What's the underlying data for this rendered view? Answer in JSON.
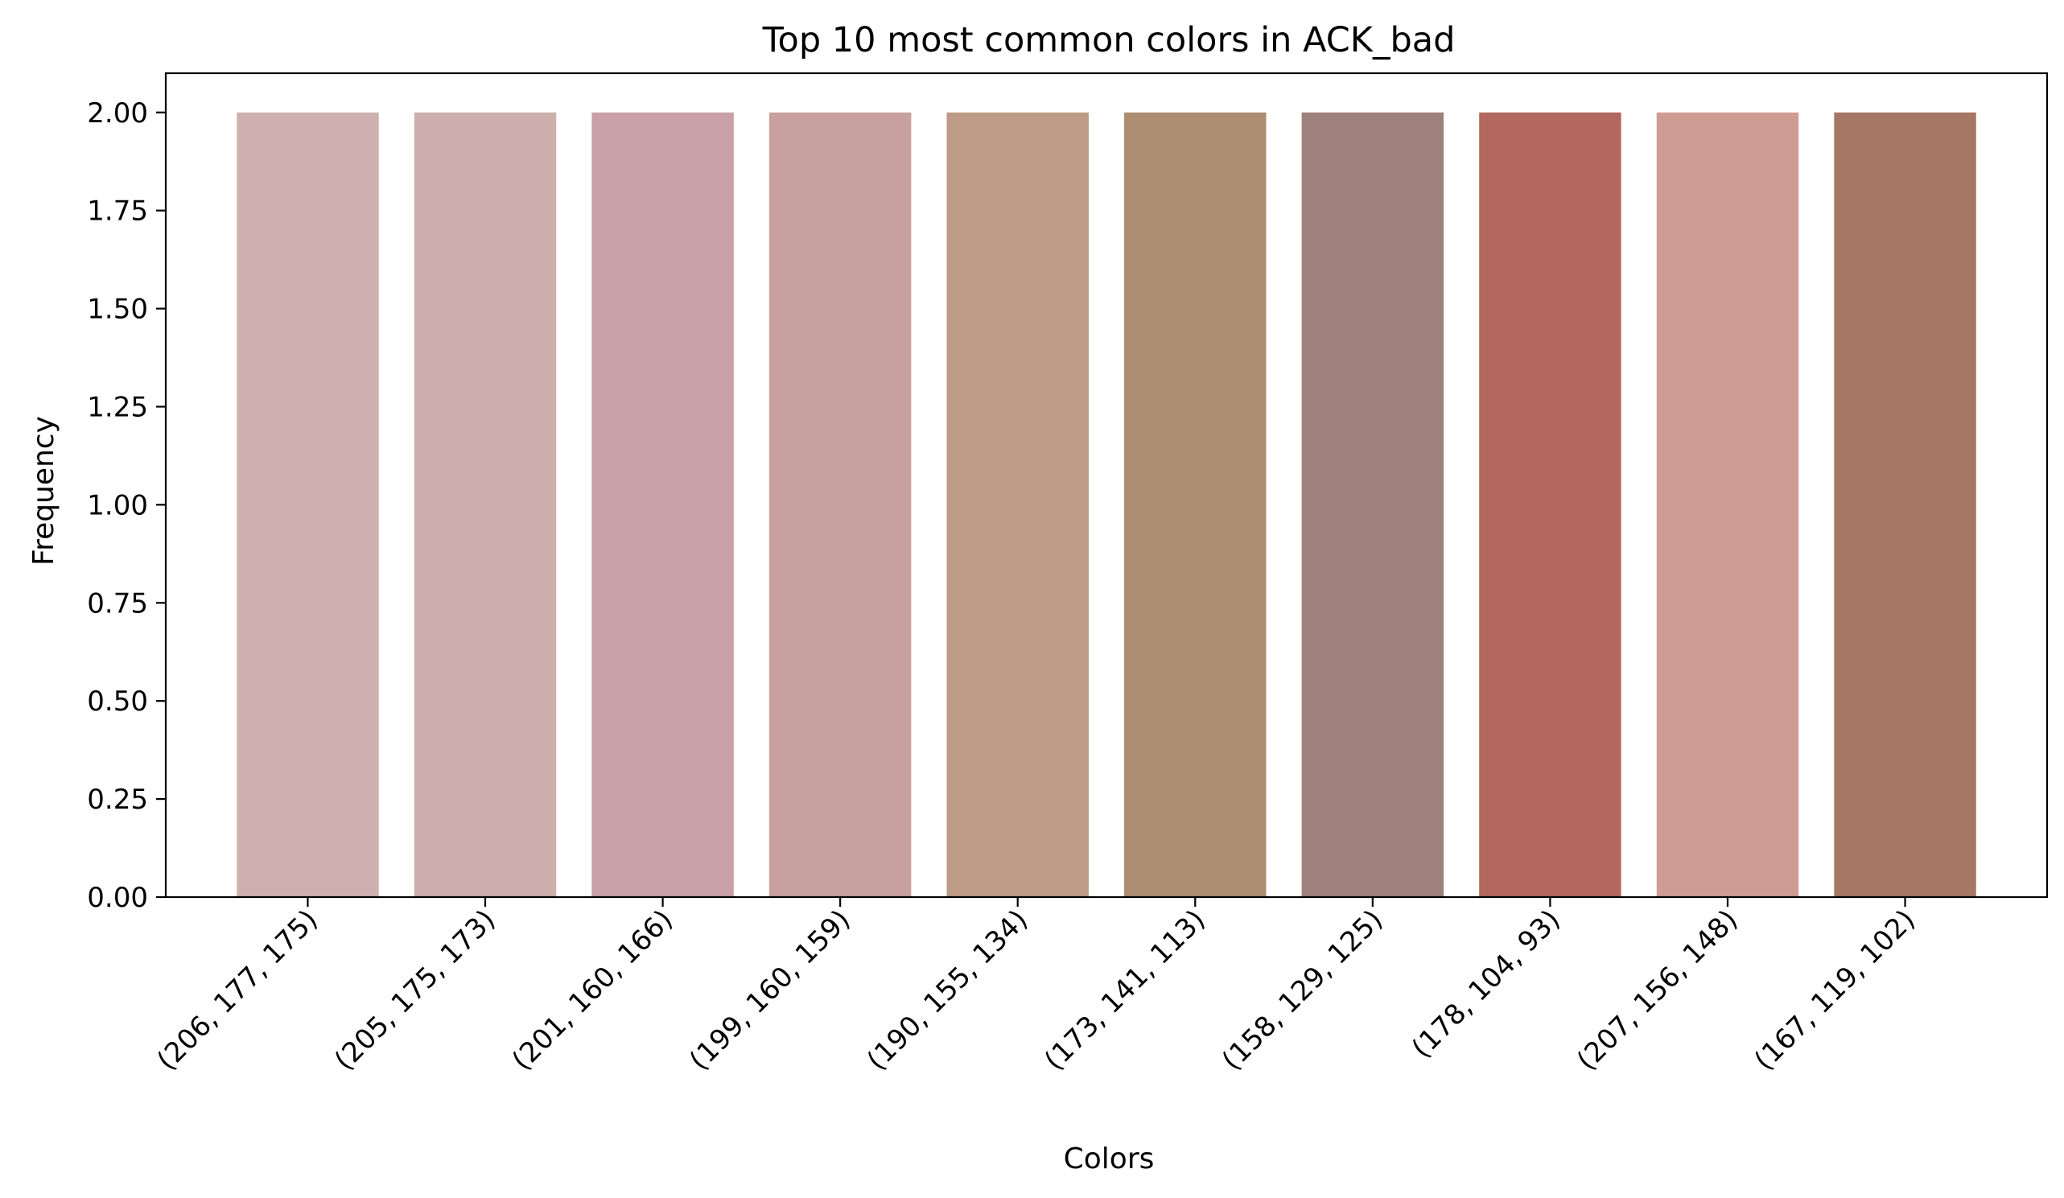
{
  "chart_data": {
    "type": "bar",
    "title": "Top 10 most common colors in ACK_bad",
    "xlabel": "Colors",
    "ylabel": "Frequency",
    "ylim": [
      0,
      2.1
    ],
    "yticks": [
      "0.00",
      "0.25",
      "0.50",
      "0.75",
      "1.00",
      "1.25",
      "1.50",
      "1.75",
      "2.00"
    ],
    "categories": [
      "(206, 177, 175)",
      "(205, 175, 173)",
      "(201, 160, 166)",
      "(199, 160, 159)",
      "(190, 155, 134)",
      "(173, 141, 113)",
      "(158, 129, 125)",
      "(178, 104, 93)",
      "(207, 156, 148)",
      "(167, 119, 102)"
    ],
    "values": [
      2,
      2,
      2,
      2,
      2,
      2,
      2,
      2,
      2,
      2
    ],
    "bar_colors": [
      "#ceb1af",
      "#cdafad",
      "#c9a0a6",
      "#c7a09f",
      "#be9b86",
      "#ad8d71",
      "#9e817d",
      "#b2685d",
      "#cf9c94",
      "#a77766"
    ],
    "grid": false,
    "legend": "none"
  }
}
